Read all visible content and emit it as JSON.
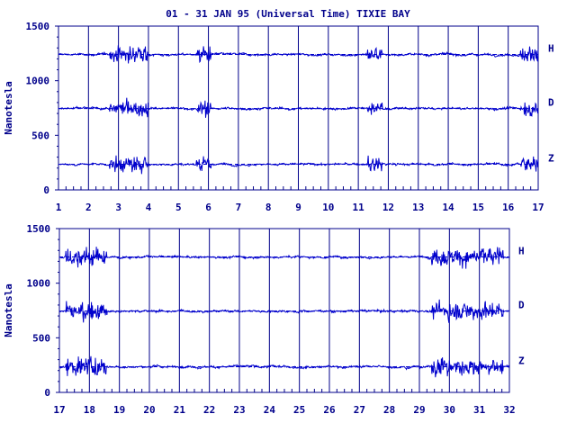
{
  "title": "01 - 31 JAN 95 (Universal Time) TIXIE BAY",
  "colors": {
    "ink": "#00008b",
    "trace": "#0000cc",
    "background": "#ffffff"
  },
  "chart_data": [
    {
      "type": "line",
      "ylabel": "Nanotesla",
      "ylim": [
        0,
        1500
      ],
      "yticks": [
        "0",
        "500",
        "1000",
        "1500"
      ],
      "x_range": [
        1,
        17
      ],
      "xticks": [
        "1",
        "2",
        "3",
        "4",
        "5",
        "6",
        "7",
        "8",
        "9",
        "10",
        "11",
        "12",
        "13",
        "14",
        "15",
        "16",
        "17"
      ],
      "series": [
        {
          "name": "H",
          "baseline": 1240
        },
        {
          "name": "D",
          "baseline": 745
        },
        {
          "name": "Z",
          "baseline": 235
        }
      ],
      "grid": true
    },
    {
      "type": "line",
      "ylabel": "Nanotesla",
      "ylim": [
        0,
        1500
      ],
      "yticks": [
        "0",
        "500",
        "1000",
        "1500"
      ],
      "x_range": [
        17,
        32
      ],
      "xticks": [
        "17",
        "18",
        "19",
        "20",
        "21",
        "22",
        "23",
        "24",
        "25",
        "26",
        "27",
        "28",
        "29",
        "30",
        "31",
        "32"
      ],
      "series": [
        {
          "name": "H",
          "baseline": 1240
        },
        {
          "name": "D",
          "baseline": 745
        },
        {
          "name": "Z",
          "baseline": 235
        }
      ],
      "grid": true
    }
  ]
}
